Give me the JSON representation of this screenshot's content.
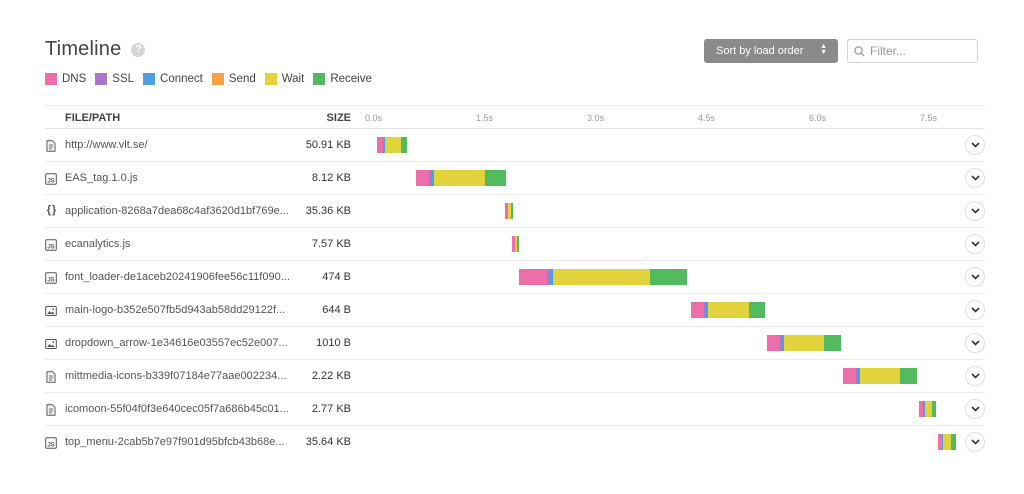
{
  "header": {
    "title": "Timeline",
    "help": "?"
  },
  "controls": {
    "sort_label": "Sort by load order",
    "sort_caret_up": "▲",
    "sort_caret_down": "▼",
    "filter_placeholder": "Filter..."
  },
  "legend": [
    {
      "label": "DNS",
      "color": "#ec6faa"
    },
    {
      "label": "SSL",
      "color": "#a877c9"
    },
    {
      "label": "Connect",
      "color": "#4f9fdc"
    },
    {
      "label": "Send",
      "color": "#f5a142"
    },
    {
      "label": "Wait",
      "color": "#e2d23b"
    },
    {
      "label": "Receive",
      "color": "#52bb60"
    }
  ],
  "table": {
    "col_file": "FILE/PATH",
    "col_size": "SIZE",
    "time_ticks": [
      {
        "label": "0.0s",
        "t": 0.0
      },
      {
        "label": "1.5s",
        "t": 1.5
      },
      {
        "label": "3.0s",
        "t": 3.0
      },
      {
        "label": "4.5s",
        "t": 4.5
      },
      {
        "label": "6.0s",
        "t": 6.0
      },
      {
        "label": "7.5s",
        "t": 7.5
      }
    ]
  },
  "rows": [
    {
      "type": "doc",
      "name": "http://www.vlt.se/",
      "size": "50.91 KB",
      "start": 0.17,
      "timings": {
        "dns": 0.09,
        "ssl": 0,
        "connect": 0.02,
        "send": 0,
        "wait": 0.22,
        "receive": 0.08
      }
    },
    {
      "type": "js",
      "name": "EAS_tag.1.0.js",
      "size": "8.12 KB",
      "start": 0.7,
      "timings": {
        "dns": 0.18,
        "ssl": 0.03,
        "connect": 0.03,
        "send": 0,
        "wait": 0.7,
        "receive": 0.28
      }
    },
    {
      "type": "json",
      "name": "application-8268a7dea68c4af3620d1bf769e...",
      "size": "35.36 KB",
      "start": 1.91,
      "timings": {
        "dns": 0.04,
        "ssl": 0,
        "connect": 0,
        "send": 0,
        "wait": 0.03,
        "receive": 0.03
      }
    },
    {
      "type": "js",
      "name": "ecanalytics.js",
      "size": "7.57 KB",
      "start": 2.0,
      "timings": {
        "dns": 0.04,
        "ssl": 0,
        "connect": 0,
        "send": 0,
        "wait": 0.03,
        "receive": 0.03
      }
    },
    {
      "type": "js",
      "name": "font_loader-de1aceb20241906fee56c11f090...",
      "size": "474 B",
      "start": 2.1,
      "timings": {
        "dns": 0.37,
        "ssl": 0.03,
        "connect": 0.06,
        "send": 0,
        "wait": 1.3,
        "receive": 0.5
      }
    },
    {
      "type": "img",
      "name": "main-logo-b352e507fb5d943ab58dd29122f...",
      "size": "644 B",
      "start": 4.42,
      "timings": {
        "dns": 0.18,
        "ssl": 0.02,
        "connect": 0.03,
        "send": 0,
        "wait": 0.55,
        "receive": 0.22
      }
    },
    {
      "type": "img",
      "name": "dropdown_arrow-1e34616e03557ec52e007...",
      "size": "1010 B",
      "start": 5.44,
      "timings": {
        "dns": 0.18,
        "ssl": 0.02,
        "connect": 0.03,
        "send": 0,
        "wait": 0.55,
        "receive": 0.22
      }
    },
    {
      "type": "doc",
      "name": "mittmedia-icons-b339f07184e77aae002234...",
      "size": "2.22 KB",
      "start": 6.47,
      "timings": {
        "dns": 0.18,
        "ssl": 0.02,
        "connect": 0.03,
        "send": 0,
        "wait": 0.55,
        "receive": 0.22
      }
    },
    {
      "type": "doc",
      "name": "icomoon-55f04f0f3e640cec05f7a686b45c01...",
      "size": "2.77 KB",
      "start": 7.5,
      "timings": {
        "dns": 0.06,
        "ssl": 0,
        "connect": 0.02,
        "send": 0,
        "wait": 0.1,
        "receive": 0.05
      }
    },
    {
      "type": "js",
      "name": "top_menu-2cab5b7e97f901d95bfcb43b68e...",
      "size": "35.64 KB",
      "start": 7.75,
      "timings": {
        "dns": 0.06,
        "ssl": 0,
        "connect": 0.02,
        "send": 0,
        "wait": 0.1,
        "receive": 0.07
      }
    }
  ]
}
